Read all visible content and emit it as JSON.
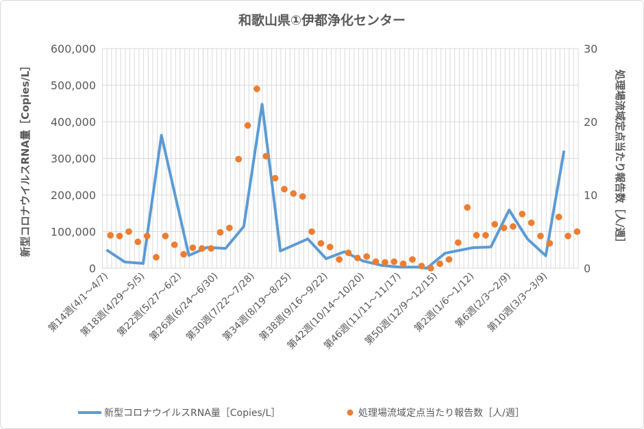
{
  "chart_data": {
    "type": "line+scatter",
    "title": "和歌山県①伊都浄化センター",
    "ylabel": "新型コロナウイルスRNA量［Copies/L］",
    "y2label": "処理場流域定点当たり報告数［人/週］",
    "ylim": [
      0,
      600000
    ],
    "y2lim": [
      0,
      30
    ],
    "yticks": [
      "0",
      "100,000",
      "200,000",
      "300,000",
      "400,000",
      "500,000",
      "600,000"
    ],
    "y2ticks": [
      "0",
      "10",
      "20",
      "30"
    ],
    "grid": true,
    "legend_position": "bottom",
    "categories": [
      "第14週(4/1～4/7)",
      "",
      "",
      "",
      "第18週(4/29～5/5)",
      "",
      "",
      "",
      "第22週(5/27～6/2)",
      "",
      "",
      "",
      "第26週(6/24～6/30)",
      "",
      "",
      "",
      "第30週(7/22～7/28)",
      "",
      "",
      "",
      "第34週(8/19～8/25)",
      "",
      "",
      "",
      "第38週(9/16～9/22)",
      "",
      "",
      "",
      "第42週(10/14～10/20)",
      "",
      "",
      "",
      "第46週(11/11～11/17)",
      "",
      "",
      "",
      "第50週(12/9～12/15)",
      "",
      "",
      "",
      "第2週(1/6～1/12)",
      "",
      "",
      "",
      "第6週(2/3～2/9)",
      "",
      "",
      "",
      "第10週(3/3～3/9)",
      "",
      "",
      ""
    ],
    "series": [
      {
        "name": "新型コロナウイルスRNA量［Copies/L］",
        "type": "line",
        "color": "#5b9bd5",
        "axis": "left",
        "points": [
          {
            "cat": 0,
            "value": 50000
          },
          {
            "cat": 2,
            "value": 17000
          },
          {
            "cat": 4,
            "value": 13000
          },
          {
            "cat": 6,
            "value": 363000
          },
          {
            "cat": 9,
            "value": 35000
          },
          {
            "cat": 11,
            "value": 57000
          },
          {
            "cat": 13,
            "value": 54000
          },
          {
            "cat": 15,
            "value": 114000
          },
          {
            "cat": 17,
            "value": 448000
          },
          {
            "cat": 19,
            "value": 47000
          },
          {
            "cat": 22,
            "value": 80000
          },
          {
            "cat": 24,
            "value": 26000
          },
          {
            "cat": 26,
            "value": 45000
          },
          {
            "cat": 28,
            "value": 20000
          },
          {
            "cat": 30,
            "value": 8000
          },
          {
            "cat": 32,
            "value": 3000
          },
          {
            "cat": 34,
            "value": 3000
          },
          {
            "cat": 35,
            "value": 0
          },
          {
            "cat": 37,
            "value": 41000
          },
          {
            "cat": 40,
            "value": 56000
          },
          {
            "cat": 42,
            "value": 58000
          },
          {
            "cat": 44,
            "value": 159000
          },
          {
            "cat": 46,
            "value": 80000
          },
          {
            "cat": 48,
            "value": 34000
          },
          {
            "cat": 50,
            "value": 321000
          }
        ]
      },
      {
        "name": "処理場流域定点当たり報告数［人/週］",
        "type": "scatter",
        "color": "#ed7d31",
        "axis": "right",
        "values": [
          4.5,
          4.4,
          5.0,
          3.6,
          4.4,
          1.5,
          4.4,
          3.2,
          1.9,
          2.8,
          2.7,
          2.7,
          4.9,
          5.5,
          14.9,
          19.5,
          24.5,
          15.3,
          12.3,
          10.8,
          10.2,
          9.8,
          5.0,
          3.4,
          2.9,
          1.2,
          2.1,
          1.4,
          1.6,
          0.9,
          0.8,
          0.9,
          0.6,
          1.2,
          0.3,
          0.0,
          0.6,
          1.2,
          3.5,
          8.3,
          4.5,
          4.5,
          6.0,
          5.5,
          5.7,
          7.4,
          6.2,
          4.4,
          3.4,
          7.0,
          4.4,
          5.0
        ]
      }
    ]
  }
}
